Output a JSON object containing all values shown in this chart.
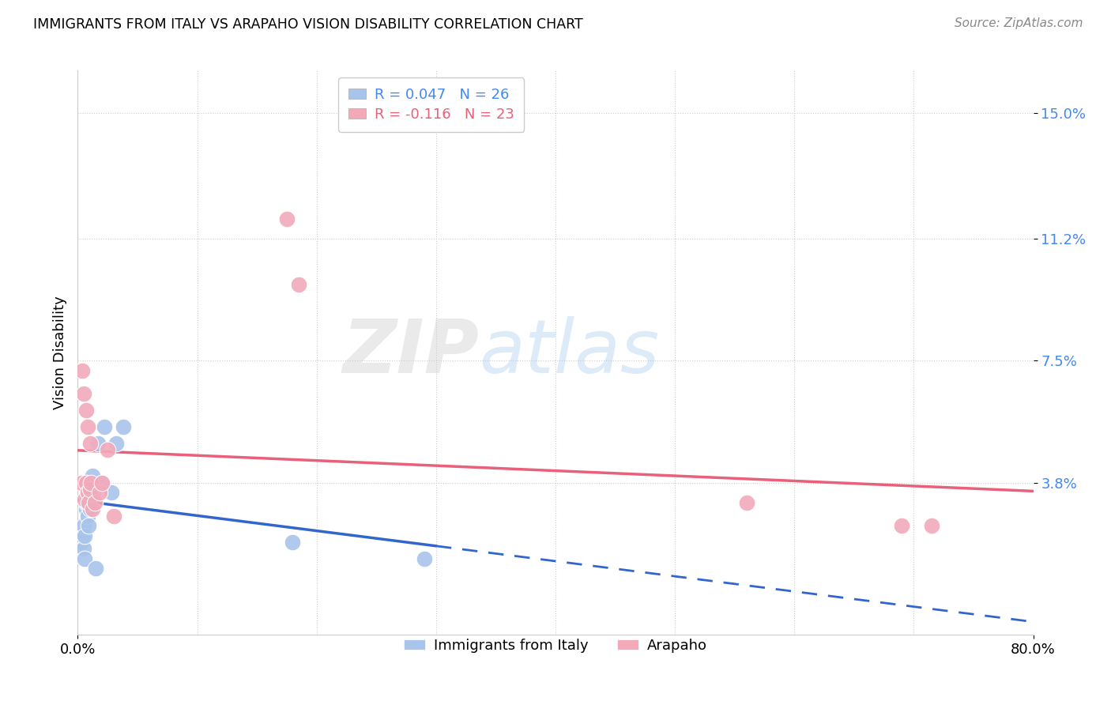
{
  "title": "IMMIGRANTS FROM ITALY VS ARAPAHO VISION DISABILITY CORRELATION CHART",
  "source": "Source: ZipAtlas.com",
  "ylabel": "Vision Disability",
  "xlim": [
    0.0,
    0.8
  ],
  "ylim": [
    -0.008,
    0.163
  ],
  "yticks": [
    0.038,
    0.075,
    0.112,
    0.15
  ],
  "ytick_labels": [
    "3.8%",
    "7.5%",
    "11.2%",
    "15.0%"
  ],
  "xticks": [
    0.0,
    0.1,
    0.2,
    0.3,
    0.4,
    0.5,
    0.6,
    0.7,
    0.8
  ],
  "blue_label": "Immigrants from Italy",
  "pink_label": "Arapaho",
  "blue_R": 0.047,
  "blue_N": 26,
  "pink_R": -0.116,
  "pink_N": 23,
  "blue_color": "#a8c4ea",
  "pink_color": "#f2aabb",
  "blue_line_color": "#3366cc",
  "pink_line_color": "#e8607a",
  "watermark_zip": "ZIP",
  "watermark_atlas": "atlas",
  "blue_x": [
    0.003,
    0.004,
    0.005,
    0.005,
    0.006,
    0.006,
    0.007,
    0.007,
    0.008,
    0.008,
    0.009,
    0.009,
    0.01,
    0.01,
    0.011,
    0.012,
    0.013,
    0.015,
    0.017,
    0.02,
    0.022,
    0.028,
    0.032,
    0.038,
    0.18,
    0.29
  ],
  "blue_y": [
    0.02,
    0.022,
    0.018,
    0.025,
    0.015,
    0.022,
    0.03,
    0.032,
    0.028,
    0.032,
    0.025,
    0.035,
    0.03,
    0.038,
    0.036,
    0.04,
    0.035,
    0.012,
    0.05,
    0.038,
    0.055,
    0.035,
    0.05,
    0.055,
    0.02,
    0.015
  ],
  "pink_x": [
    0.003,
    0.004,
    0.005,
    0.006,
    0.007,
    0.007,
    0.008,
    0.008,
    0.009,
    0.01,
    0.01,
    0.011,
    0.012,
    0.014,
    0.018,
    0.02,
    0.025,
    0.03,
    0.175,
    0.185,
    0.56,
    0.69,
    0.715
  ],
  "pink_y": [
    0.038,
    0.072,
    0.065,
    0.033,
    0.038,
    0.06,
    0.035,
    0.055,
    0.032,
    0.036,
    0.05,
    0.038,
    0.03,
    0.032,
    0.035,
    0.038,
    0.048,
    0.028,
    0.118,
    0.098,
    0.032,
    0.025,
    0.025
  ],
  "blue_solid_xrange": [
    0.0,
    0.3
  ],
  "blue_dash_xrange": [
    0.3,
    0.8
  ],
  "pink_xrange": [
    0.0,
    0.8
  ]
}
